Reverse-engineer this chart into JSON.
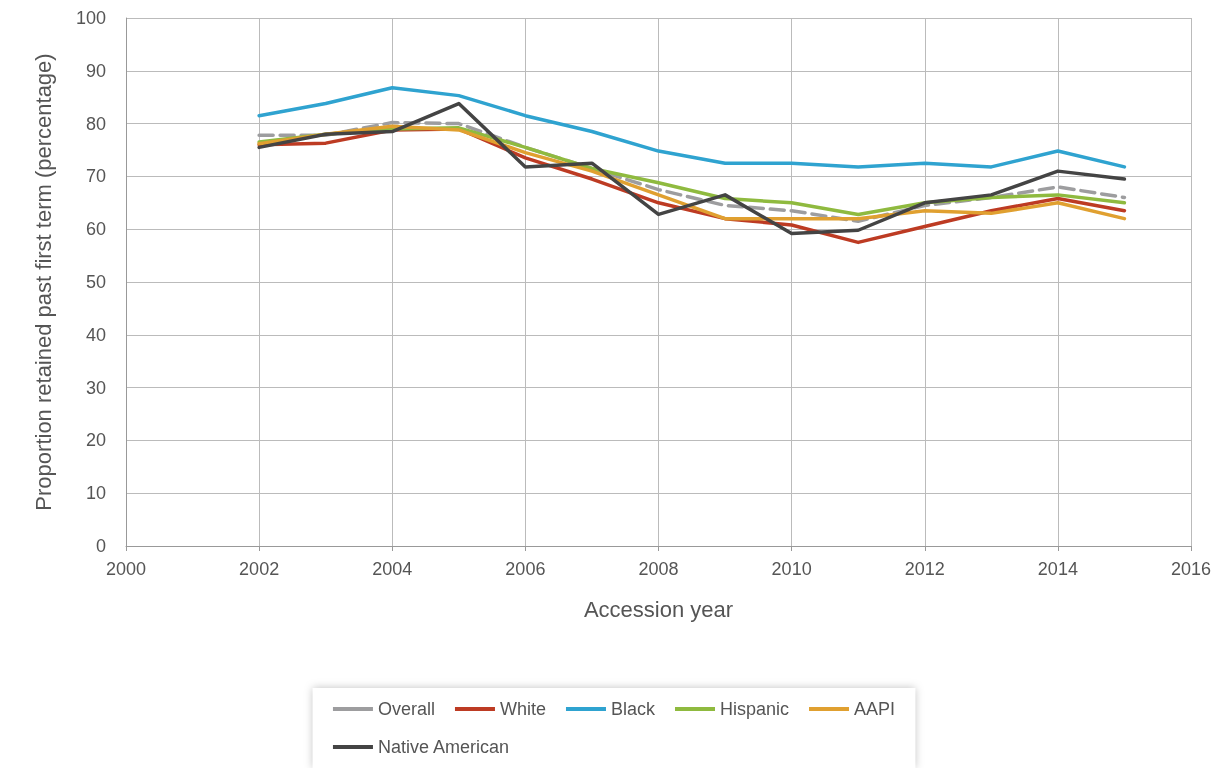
{
  "chart_data": {
    "type": "line",
    "xlabel": "Accession year",
    "ylabel": "Proportion retained past first term (percentage)",
    "x": [
      2002,
      2003,
      2004,
      2005,
      2006,
      2007,
      2008,
      2009,
      2010,
      2011,
      2012,
      2013,
      2014,
      2015
    ],
    "xlim": [
      2000,
      2016
    ],
    "xticks": [
      2000,
      2002,
      2004,
      2006,
      2008,
      2010,
      2012,
      2014,
      2016
    ],
    "ylim": [
      0,
      100
    ],
    "yticks": [
      0,
      10,
      20,
      30,
      40,
      50,
      60,
      70,
      80,
      90,
      100
    ],
    "grid": true,
    "legend": "bottom",
    "marker": "none",
    "series": [
      {
        "name": "Overall",
        "color": "#9d9d9f",
        "line_style": "dashed",
        "values": [
          77.8,
          77.8,
          80.2,
          80,
          75.5,
          71.5,
          67.5,
          64.5,
          63.5,
          61.5,
          64.5,
          66,
          68,
          66
        ]
      },
      {
        "name": "White",
        "color": "#bd3b23",
        "values": [
          76,
          76.3,
          78.8,
          79,
          73.5,
          69.5,
          65,
          62,
          60.8,
          57.5,
          60.5,
          63.5,
          65.8,
          63.5
        ]
      },
      {
        "name": "Black",
        "color": "#2fa3d0",
        "values": [
          81.5,
          83.8,
          86.8,
          85.3,
          81.5,
          78.5,
          74.8,
          72.5,
          72.5,
          71.8,
          72.5,
          71.8,
          74.8,
          71.8
        ]
      },
      {
        "name": "Hispanic",
        "color": "#8fba3f",
        "values": [
          76.5,
          78,
          79,
          79.2,
          75.5,
          71.5,
          68.8,
          65.8,
          65,
          62.8,
          65,
          66,
          66.5,
          65
        ]
      },
      {
        "name": "AAPI",
        "color": "#e0a030",
        "values": [
          76.2,
          78,
          79.5,
          78.8,
          74.5,
          71,
          66.5,
          62,
          62,
          62,
          63.5,
          63,
          65,
          62
        ]
      },
      {
        "name": "Native American",
        "color": "#444444",
        "values": [
          75.5,
          78,
          78.5,
          83.8,
          71.8,
          72.5,
          62.8,
          66.5,
          59.2,
          59.8,
          65,
          66.5,
          71,
          69.5
        ]
      }
    ]
  }
}
